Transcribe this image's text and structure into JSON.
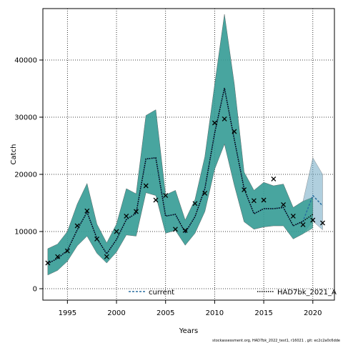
{
  "chart_data": {
    "type": "line",
    "title": "",
    "xlabel": "Years",
    "ylabel": "Catch",
    "xlim": [
      1992.5,
      2022.2
    ],
    "ylim": [
      -2000,
      49000
    ],
    "x_ticks": [
      1995,
      2000,
      2005,
      2010,
      2015,
      2020
    ],
    "y_ticks": [
      0,
      10000,
      20000,
      30000,
      40000
    ],
    "grid": true,
    "legend_placement": "bottom",
    "series": [
      {
        "name": "current",
        "style": "dashed",
        "color": "#2a6fa0",
        "band_color": "#6fa8c3",
        "x": [
          1993,
          1994,
          1995,
          1996,
          1997,
          1998,
          1999,
          2000,
          2001,
          2002,
          2003,
          2004,
          2005,
          2006,
          2007,
          2008,
          2009,
          2010,
          2011,
          2012,
          2013,
          2014,
          2015,
          2016,
          2017,
          2018,
          2019,
          2020,
          2021
        ],
        "y": [
          4400,
          5300,
          6700,
          10300,
          13400,
          8800,
          6100,
          8600,
          12100,
          13200,
          22700,
          22900,
          12700,
          13000,
          9800,
          12600,
          17500,
          27200,
          35100,
          26100,
          17500,
          13100,
          14000,
          14000,
          14200,
          11000,
          11800,
          16300,
          14500
        ],
        "lower": [
          2400,
          3200,
          4800,
          7500,
          9200,
          6200,
          4500,
          6400,
          9400,
          9200,
          16800,
          16300,
          9700,
          10200,
          7600,
          9700,
          13500,
          20900,
          25300,
          18100,
          11700,
          10400,
          10800,
          11000,
          11000,
          8700,
          9600,
          11800,
          10300
        ],
        "upper": [
          7000,
          7800,
          10000,
          14800,
          18400,
          11300,
          8000,
          11300,
          17500,
          16600,
          30300,
          31300,
          16400,
          17200,
          12000,
          15600,
          23100,
          35700,
          48000,
          35800,
          20400,
          17200,
          18600,
          18000,
          18300,
          14200,
          15300,
          22900,
          20000
        ]
      },
      {
        "name": "HAD7bk_2021_A",
        "style": "dotted",
        "color": "#000000",
        "band_color": "#2e9a8e",
        "x": [
          1993,
          1994,
          1995,
          1996,
          1997,
          1998,
          1999,
          2000,
          2001,
          2002,
          2003,
          2004,
          2005,
          2006,
          2007,
          2008,
          2009,
          2010,
          2011,
          2012,
          2013,
          2014,
          2015,
          2016,
          2017,
          2018,
          2019,
          2020
        ],
        "y": [
          4400,
          5300,
          6700,
          10300,
          13400,
          8800,
          6100,
          8600,
          12100,
          13200,
          22700,
          22900,
          12700,
          13000,
          9800,
          12600,
          17500,
          27200,
          35100,
          26100,
          17500,
          13100,
          14000,
          14000,
          14200,
          11000,
          11800,
          13000
        ],
        "lower": [
          2400,
          3200,
          4800,
          7500,
          9200,
          6200,
          4500,
          6400,
          9400,
          9200,
          16800,
          16300,
          9700,
          10200,
          7600,
          9700,
          13500,
          20900,
          25300,
          18100,
          11700,
          10400,
          10800,
          11000,
          11000,
          8700,
          9600,
          10600
        ],
        "upper": [
          7000,
          7800,
          10000,
          14800,
          18400,
          11300,
          8000,
          11300,
          17500,
          16600,
          30300,
          31300,
          16400,
          17200,
          12000,
          15600,
          23100,
          35700,
          48000,
          35800,
          20400,
          17200,
          18600,
          18000,
          18300,
          14200,
          15300,
          16000
        ]
      }
    ],
    "observed": {
      "marker": "x",
      "color": "#000000",
      "x": [
        1993,
        1994,
        1995,
        1996,
        1997,
        1998,
        1999,
        2000,
        2001,
        2002,
        2003,
        2004,
        2005,
        2006,
        2007,
        2008,
        2009,
        2010,
        2011,
        2012,
        2013,
        2014,
        2015,
        2016,
        2017,
        2018,
        2019,
        2020,
        2021
      ],
      "y": [
        4500,
        5600,
        6600,
        11000,
        13600,
        8700,
        5600,
        10000,
        12700,
        13500,
        18000,
        15500,
        16300,
        10400,
        10200,
        14900,
        16700,
        29000,
        29700,
        27500,
        17300,
        15400,
        15500,
        19200,
        14700,
        12700,
        11200,
        12000,
        11500
      ]
    },
    "footer": "stockassessment.org, HAD7bk_2022_test1, r16021 , git: ec2c2a0c6dde"
  }
}
